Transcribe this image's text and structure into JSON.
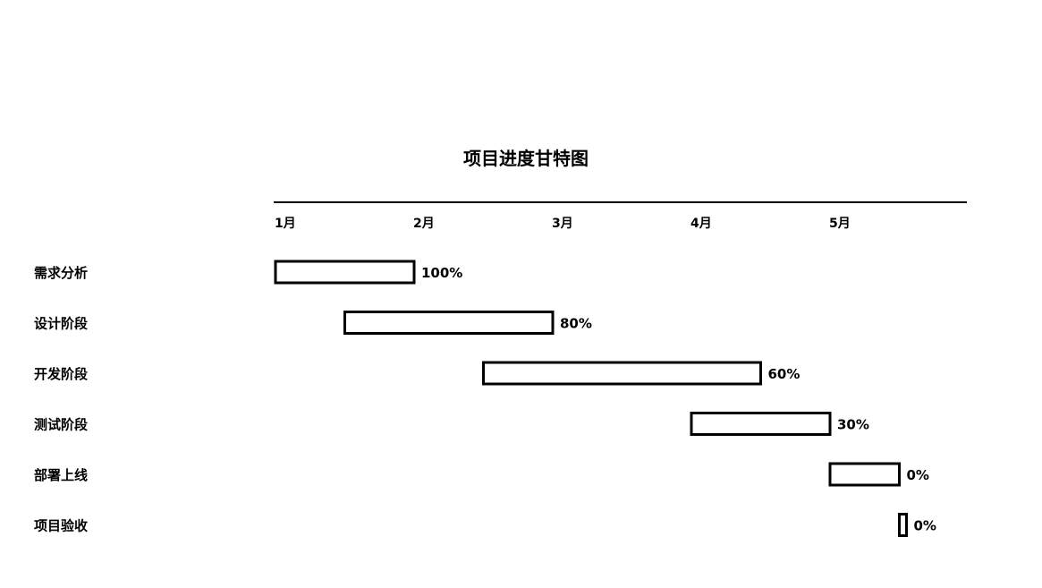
{
  "chart_data": {
    "type": "gantt",
    "title": "项目进度甘特图",
    "x_ticks": [
      "1月",
      "2月",
      "3月",
      "4月",
      "5月"
    ],
    "x_unit": "month",
    "xlim": [
      1,
      6
    ],
    "grid": false,
    "tasks": [
      {
        "name": "需求分析",
        "start": 1.0,
        "end": 2.0,
        "progress_label": "100%",
        "progress": 1.0
      },
      {
        "name": "设计阶段",
        "start": 1.5,
        "end": 3.0,
        "progress_label": "80%",
        "progress": 0.8
      },
      {
        "name": "开发阶段",
        "start": 2.5,
        "end": 4.5,
        "progress_label": "60%",
        "progress": 0.6
      },
      {
        "name": "测试阶段",
        "start": 4.0,
        "end": 5.0,
        "progress_label": "30%",
        "progress": 0.3
      },
      {
        "name": "部署上线",
        "start": 5.0,
        "end": 5.5,
        "progress_label": "0%",
        "progress": 0.0
      },
      {
        "name": "项目验收",
        "start": 5.5,
        "end": 5.55,
        "progress_label": "0%",
        "progress": 0.0
      }
    ],
    "colors": {
      "bar_fill": "#ffffff",
      "bar_stroke": "#000000",
      "text": "#000000"
    }
  }
}
